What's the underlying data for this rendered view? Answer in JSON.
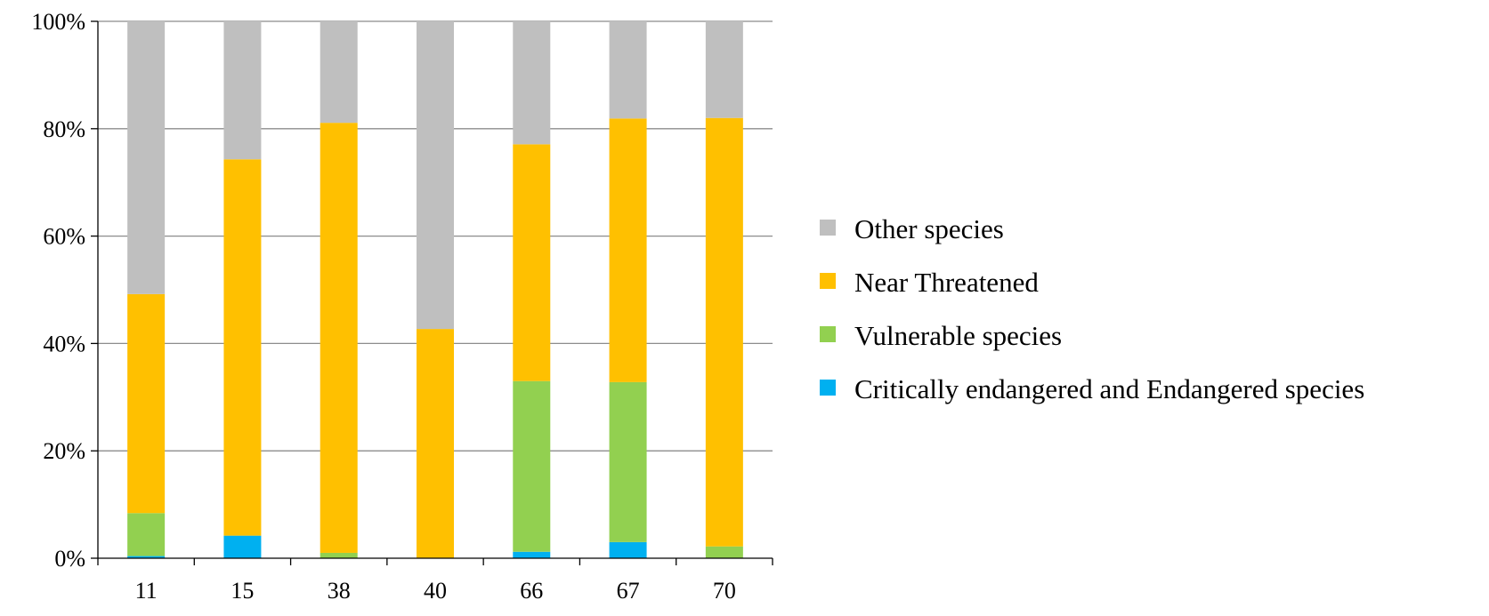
{
  "chart_data": {
    "type": "bar",
    "stacked": true,
    "percent": true,
    "categories": [
      "11",
      "15",
      "38",
      "40",
      "66",
      "67",
      "70"
    ],
    "series": [
      {
        "name": "Critically endangered and Endangered species",
        "color": "#00b0f0",
        "values": [
          0.4,
          4.2,
          0.0,
          0.0,
          1.2,
          3.0,
          0.0
        ]
      },
      {
        "name": "Vulnerable species",
        "color": "#92d050",
        "values": [
          8.0,
          0.0,
          1.0,
          0.0,
          31.8,
          29.8,
          2.2
        ]
      },
      {
        "name": "Near Threatened",
        "color": "#ffc000",
        "values": [
          40.8,
          70.1,
          80.1,
          42.7,
          44.1,
          49.1,
          79.8
        ]
      },
      {
        "name": "Other species",
        "color": "#bfbfbf",
        "values": [
          50.8,
          25.7,
          18.9,
          57.3,
          22.9,
          18.1,
          18.0
        ]
      }
    ],
    "y_ticks": [
      "0%",
      "20%",
      "40%",
      "60%",
      "80%",
      "100%"
    ],
    "ylim": [
      0,
      100
    ],
    "grid": true,
    "legend_position": "right",
    "title": "",
    "xlabel": "",
    "ylabel": ""
  }
}
